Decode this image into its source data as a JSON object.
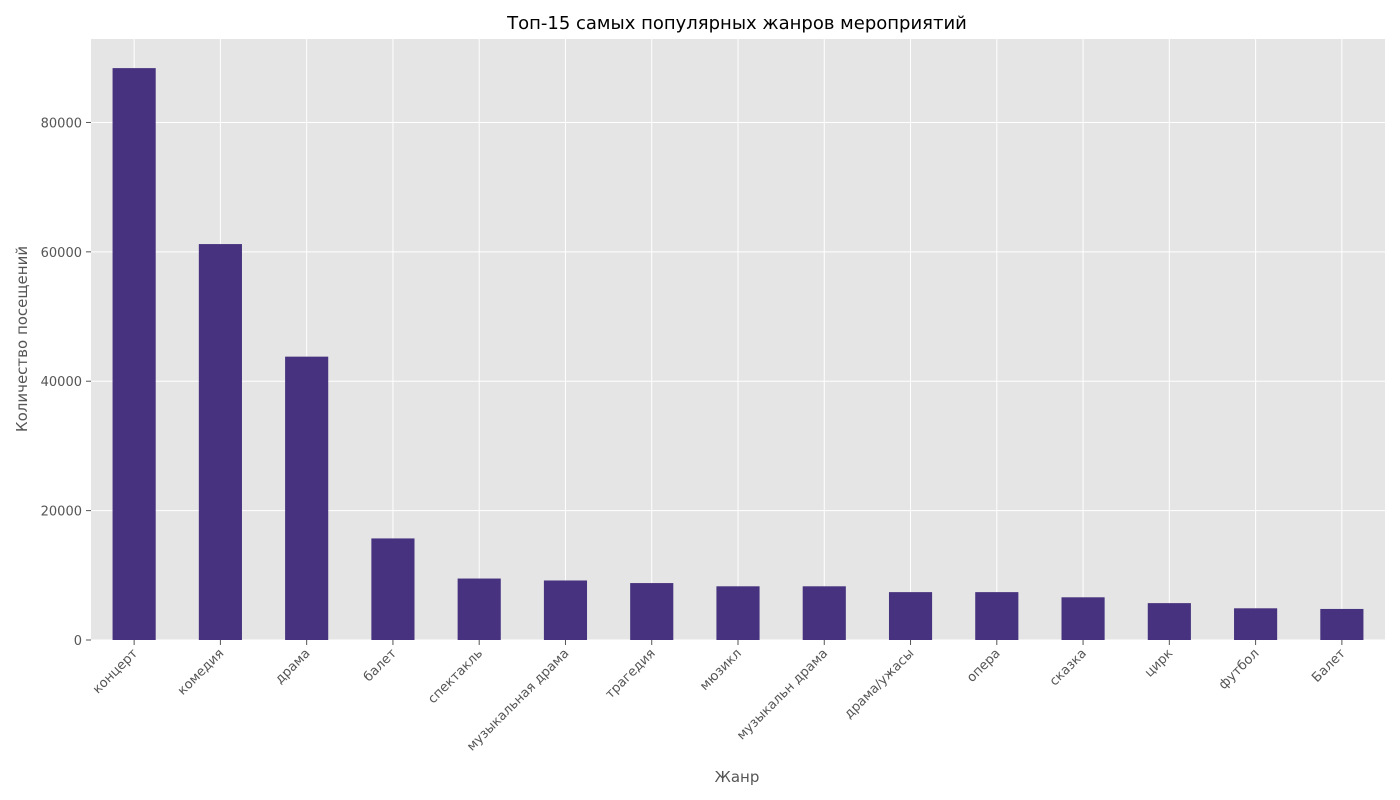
{
  "chart_data": {
    "type": "bar",
    "title": "Топ-15 самых популярных жанров мероприятий",
    "xlabel": "Жанр",
    "ylabel": "Количество посещений",
    "categories": [
      "концерт",
      "комедия",
      "драма",
      "балет",
      "спектакль",
      "музыкальная драма",
      "трагедия",
      "мюзикл",
      "музыкальн драма",
      "драма/ужасы",
      "опера",
      "сказка",
      "цирк",
      "футбол",
      "Балет"
    ],
    "values": [
      88400,
      61200,
      43800,
      15700,
      9500,
      9200,
      8800,
      8300,
      8300,
      7400,
      7400,
      6600,
      5700,
      4900,
      4800
    ],
    "ylim": [
      0,
      92900
    ],
    "yticks": [
      0,
      20000,
      40000,
      60000,
      80000
    ],
    "grid": true,
    "bar_color": "#46327e",
    "background_color": "#e5e5e5",
    "grid_color": "#ffffff"
  }
}
